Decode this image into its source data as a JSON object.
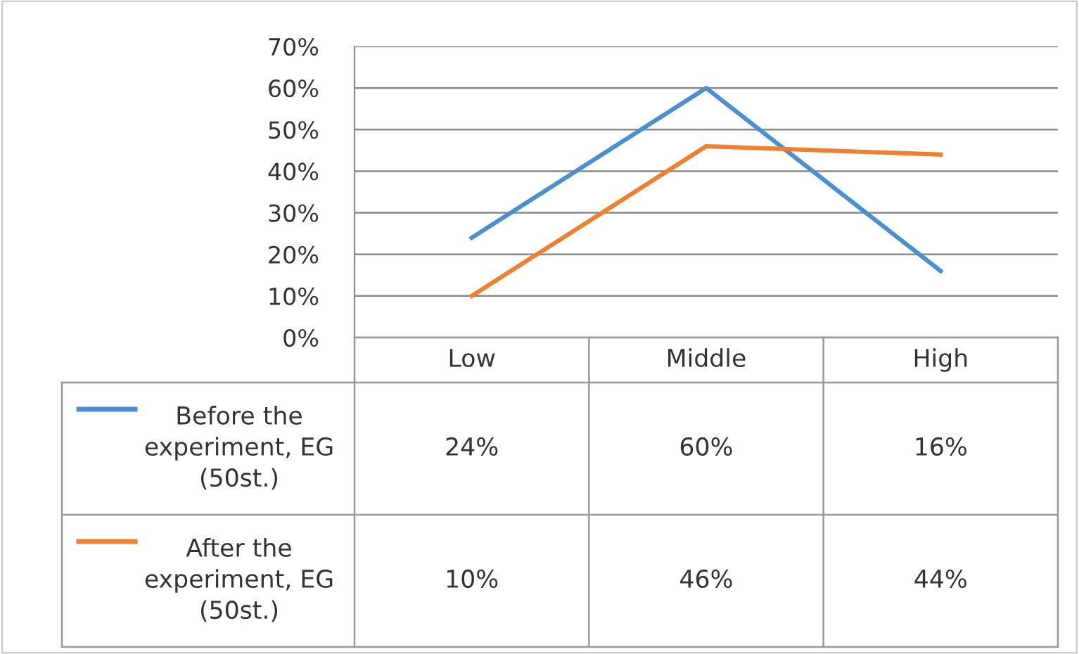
{
  "chart_data": {
    "type": "line",
    "categories": [
      "Low",
      "Middle",
      "High"
    ],
    "series": [
      {
        "name": "Before the\nexperiment, EG\n(50st.)",
        "color": "#4a8fd0",
        "values": [
          24,
          60,
          16
        ],
        "value_labels": [
          "24%",
          "60%",
          "16%"
        ]
      },
      {
        "name": "After the\nexperiment, EG\n(50st.)",
        "color": "#f08030",
        "values": [
          10,
          46,
          44
        ],
        "value_labels": [
          "10%",
          "46%",
          "44%"
        ]
      }
    ],
    "ylim": [
      0,
      70
    ],
    "yticks": [
      {
        "value": 0,
        "label": "0%"
      },
      {
        "value": 10,
        "label": "10%"
      },
      {
        "value": 20,
        "label": "20%"
      },
      {
        "value": 30,
        "label": "30%"
      },
      {
        "value": 40,
        "label": "40%"
      },
      {
        "value": 50,
        "label": "50%"
      },
      {
        "value": 60,
        "label": "60%"
      },
      {
        "value": 70,
        "label": "70%"
      }
    ],
    "grid": "y",
    "legend": "bottom",
    "marker": "none",
    "line_style": "solid"
  }
}
